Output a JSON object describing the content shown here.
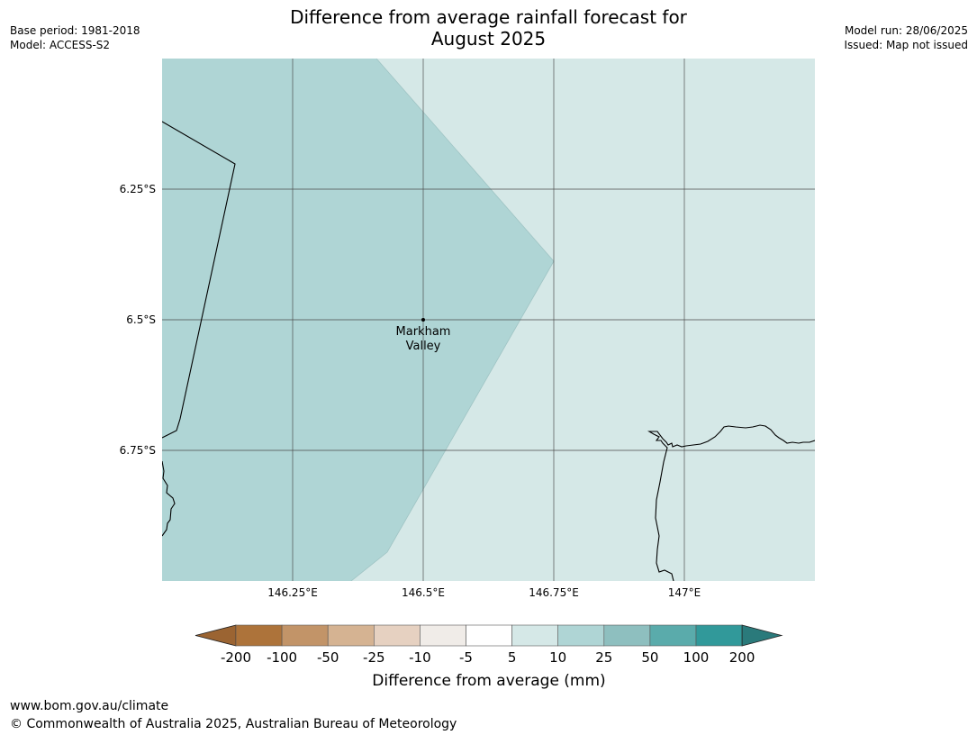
{
  "header": {
    "title_line1": "Difference from average rainfall forecast for",
    "title_line2": "August 2025",
    "base_period": "Base period: 1981-2018",
    "model": "Model: ACCESS-S2",
    "model_run": "Model run: 28/06/2025",
    "issued": "Issued: Map not issued"
  },
  "map": {
    "lat_ticks": [
      "6.25°S",
      "6.5°S",
      "6.75°S"
    ],
    "lon_ticks": [
      "146.25°E",
      "146.5°E",
      "146.75°E",
      "147°E"
    ],
    "place": {
      "name_line1": "Markham",
      "name_line2": "Valley"
    },
    "colors": {
      "zone_5_10": "#d5e8e7",
      "zone_10_25": "#afd5d5",
      "gridline": "#4a4a4a",
      "coastline": "#000000"
    }
  },
  "legend": {
    "ticks": [
      "-200",
      "-100",
      "-50",
      "-25",
      "-10",
      "-5",
      "5",
      "10",
      "25",
      "50",
      "100",
      "200"
    ],
    "colors": [
      "#9b6432",
      "#ad733a",
      "#c29468",
      "#d5b392",
      "#e6d1c1",
      "#f0ece8",
      "#ffffff",
      "#d5e8e7",
      "#afd5d5",
      "#8ebfbf",
      "#5aabab",
      "#31999a",
      "#2a7a7b"
    ],
    "label": "Difference from average (mm)"
  },
  "footer": {
    "url": "www.bom.gov.au/climate",
    "copyright": "© Commonwealth of Australia 2025, Australian Bureau of Meteorology"
  }
}
